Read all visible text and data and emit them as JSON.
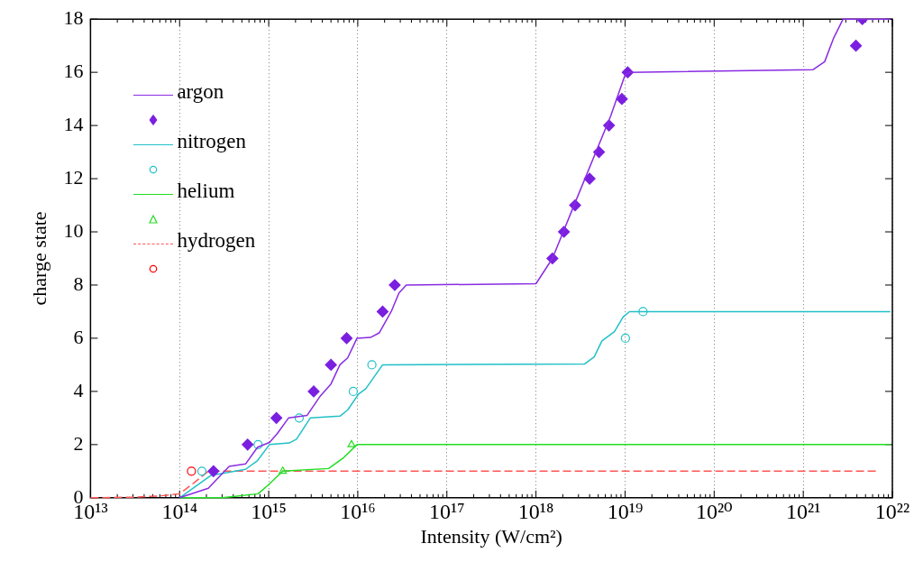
{
  "chart_data": {
    "type": "scatter",
    "xlabel": "Intensity (W/cm²)",
    "ylabel": "charge state",
    "xlim": [
      10000000000000.0,
      1e+22
    ],
    "ylim": [
      0,
      18
    ],
    "xticks": [
      {
        "value": 10000000000000.0,
        "label": "10¹³"
      },
      {
        "value": 100000000000000.0,
        "label": "10¹⁴"
      },
      {
        "value": 1000000000000000.0,
        "label": "10¹⁵"
      },
      {
        "value": 1e+16,
        "label": "10¹⁶"
      },
      {
        "value": 1e+17,
        "label": "10¹⁷"
      },
      {
        "value": 1e+18,
        "label": "10¹⁸"
      },
      {
        "value": 1e+19,
        "label": "10¹⁹"
      },
      {
        "value": 1e+20,
        "label": "10²⁰"
      },
      {
        "value": 1e+21,
        "label": "10²¹"
      },
      {
        "value": 1e+22,
        "label": "10²²"
      }
    ],
    "yticks": [
      0,
      2,
      4,
      6,
      8,
      10,
      12,
      14,
      16,
      18
    ],
    "log": "x",
    "grid": "x",
    "legend": "top left",
    "series": [
      {
        "name": "argon",
        "type": "line",
        "color": "#8a2be2",
        "marker": "none",
        "line_style": "solid",
        "x": [
          100000000000000.0,
          210000000000000.0,
          360000000000000.0,
          550000000000000.0,
          750000000000000.0,
          1020000000000000.0,
          1240000000000000.0,
          1670000000000000.0,
          2700000000000000.0,
          3800000000000000.0,
          5000000000000000.0,
          6300000000000000.0,
          7700000000000000.0,
          9800000000000000.0,
          1.39e+16,
          1.74e+16,
          2.4e+16,
          2.9e+16,
          3.5e+16,
          1e+18,
          1.53e+18,
          2.75e+18,
          6.9e+18,
          1e+19,
          1.12e+19,
          1.29e+21,
          1.74e+21,
          2.2e+21,
          2.8e+21,
          9.5e+21
        ],
        "values": [
          0,
          0.36,
          1.18,
          1.27,
          1.9,
          2.08,
          2.4,
          3.0,
          3.1,
          3.83,
          4.28,
          5.0,
          5.26,
          6.0,
          6.03,
          6.2,
          7.04,
          7.7,
          8.0,
          8.05,
          9,
          11.1,
          14.36,
          15.9,
          16,
          16.1,
          16.4,
          17.3,
          18,
          18
        ]
      },
      {
        "type": "scatter",
        "color": "#7a1fe0",
        "marker": "diamond",
        "x": [
          240000000000000.0,
          580000000000000.0,
          1220000000000000.0,
          3200000000000000.0,
          5000000000000000.0,
          7500000000000000.0,
          1.9e+16,
          2.6e+16,
          1.53e+18,
          2.06e+18,
          2.75e+18,
          4e+18,
          5.1e+18,
          6.6e+18,
          9.2e+18,
          1.07e+19,
          3.9e+21,
          4.6e+21
        ],
        "values": [
          1,
          2,
          3,
          4,
          5,
          6,
          7,
          8,
          9,
          10,
          11,
          12,
          13,
          14,
          15,
          16,
          17,
          18
        ]
      },
      {
        "name": "nitrogen",
        "type": "line",
        "color": "#20c0c8",
        "marker": "none",
        "line_style": "solid",
        "x": [
          100000000000000.0,
          224000000000000.0,
          550000000000000.0,
          750000000000000.0,
          1020000000000000.0,
          1700000000000000.0,
          2050000000000000.0,
          2930000000000000.0,
          6300000000000000.0,
          7700000000000000.0,
          1.02e+16,
          1.23e+16,
          1.9e+16,
          3.5e+18,
          4.5e+18,
          5.5e+18,
          7.6e+18,
          9.5e+18,
          1.12e+19,
          9.5e+21
        ],
        "values": [
          0,
          0.84,
          1.07,
          1.4,
          2,
          2.06,
          2.2,
          3,
          3.07,
          3.3,
          3.9,
          4.1,
          5,
          5.03,
          5.3,
          5.9,
          6.25,
          6.8,
          7,
          7
        ]
      },
      {
        "type": "scatter",
        "color": "#20c0c8",
        "marker": "circle",
        "x": [
          178000000000000.0,
          760000000000000.0,
          2200000000000000.0,
          8900000000000000.0,
          1.44e+16,
          1.01e+19,
          1.59e+19
        ],
        "values": [
          1,
          2,
          3,
          4,
          5,
          6,
          7
        ]
      },
      {
        "name": "helium",
        "type": "line",
        "color": "#22dd22",
        "marker": "none",
        "line_style": "solid",
        "x": [
          100000000000000.0,
          300000000000000.0,
          760000000000000.0,
          980000000000000.0,
          1440000000000000.0,
          4700000000000000.0,
          6900000000000000.0,
          9800000000000000.0,
          9.5e+21
        ],
        "values": [
          0,
          0,
          0.15,
          0.47,
          1,
          1.1,
          1.5,
          2,
          2
        ]
      },
      {
        "type": "scatter",
        "color": "#22dd22",
        "marker": "triangle",
        "x": [
          1440000000000000.0,
          8500000000000000.0
        ],
        "values": [
          1,
          2
        ]
      },
      {
        "name": "hydrogen",
        "type": "line",
        "color": "#ff5555",
        "marker": "none",
        "line_style": "dashed",
        "x": [
          10000000000000.0,
          30000000000000.0,
          60000000000000.0,
          100000000000000.0,
          150000000000000.0,
          210000000000000.0,
          7e+21
        ],
        "values": [
          0,
          0.02,
          0.07,
          0.15,
          0.6,
          1,
          1
        ]
      },
      {
        "type": "scatter",
        "color": "#ff0000",
        "marker": "circle",
        "x": [
          136000000000000.0
        ],
        "values": [
          1
        ]
      }
    ]
  }
}
